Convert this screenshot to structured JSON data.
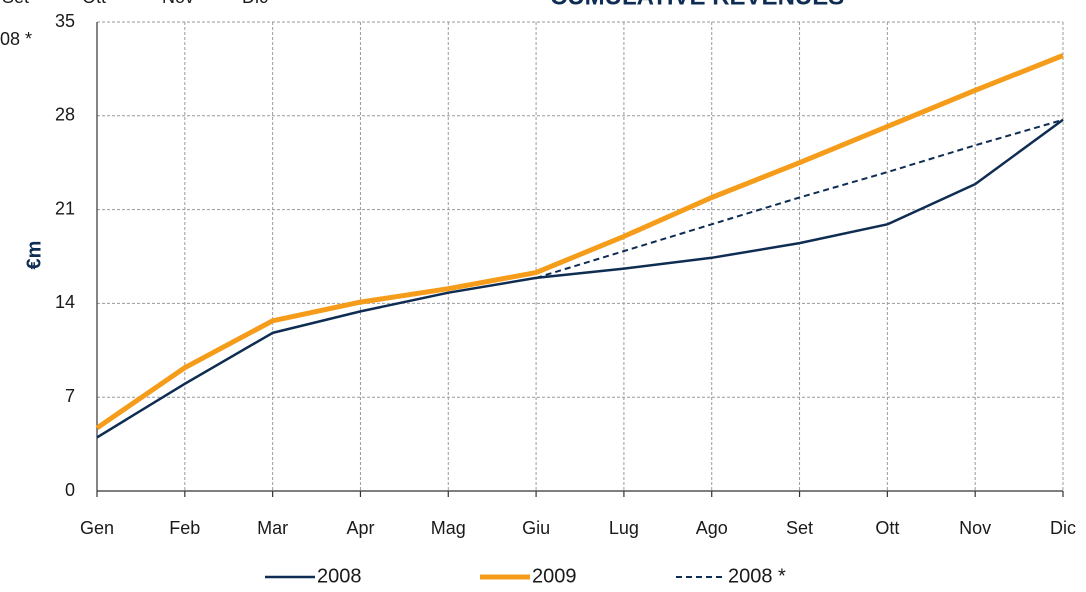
{
  "chart_data": {
    "type": "line",
    "title": "CUMULATIVE REVENUES",
    "clipped_labels": [
      "Set",
      "Ott",
      "Nov",
      "Dic"
    ],
    "clipped_legend": "08 *",
    "ylabel": "€m",
    "categories": [
      "Gen",
      "Feb",
      "Mar",
      "Apr",
      "Mag",
      "Giu",
      "Lug",
      "Ago",
      "Set",
      "Ott",
      "Nov",
      "Dic"
    ],
    "series": [
      {
        "name": "2008",
        "color": "#0f2d52",
        "width": 2.5,
        "dash": false,
        "values": [
          4.0,
          8.0,
          11.8,
          13.4,
          14.8,
          15.9,
          16.6,
          17.4,
          18.5,
          19.9,
          22.9,
          27.7
        ]
      },
      {
        "name": "2009",
        "color": "#f59c1a",
        "width": 5,
        "dash": false,
        "values": [
          4.7,
          9.2,
          12.7,
          14.1,
          15.1,
          16.3,
          19.0,
          21.9,
          24.5,
          27.2,
          29.9,
          32.5
        ]
      },
      {
        "name": "2008 *",
        "color": "#0f2d52",
        "width": 2,
        "dash": true,
        "values": [
          null,
          null,
          null,
          null,
          null,
          15.9,
          17.9,
          19.9,
          21.9,
          23.8,
          25.8,
          27.7
        ]
      }
    ],
    "ylim": [
      0,
      35
    ],
    "yticks": [
      0,
      7,
      14,
      21,
      28,
      35
    ],
    "grid": true
  }
}
